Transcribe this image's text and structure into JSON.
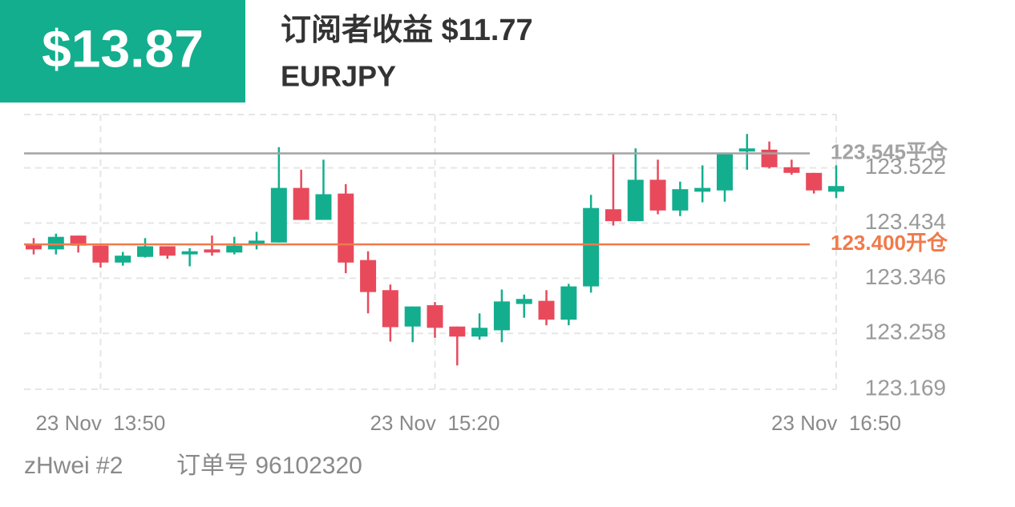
{
  "header": {
    "amount": "$13.87",
    "title": "订阅者收益 $11.77",
    "symbol": "EURJPY"
  },
  "footer": {
    "user": "zHwei #2",
    "order": "订单号 96102320"
  },
  "chart_data": {
    "type": "candlestick",
    "categories": [
      null,
      null,
      null,
      "23 Nov  13:50",
      null,
      null,
      null,
      null,
      null,
      null,
      null,
      null,
      null,
      null,
      null,
      null,
      null,
      null,
      "23 Nov  15:20",
      null,
      null,
      null,
      null,
      null,
      null,
      null,
      null,
      null,
      null,
      null,
      null,
      null,
      null,
      null,
      null,
      null,
      "23 Nov  16:50"
    ],
    "open": [
      123.401,
      123.392,
      123.414,
      123.398,
      123.371,
      123.38,
      123.397,
      123.384,
      123.392,
      123.387,
      123.401,
      123.403,
      123.49,
      123.439,
      123.481,
      123.375,
      123.327,
      123.269,
      123.303,
      123.269,
      123.253,
      123.263,
      123.305,
      123.31,
      123.28,
      123.333,
      123.456,
      123.437,
      123.503,
      123.454,
      123.484,
      123.486,
      123.548,
      123.551,
      123.523,
      123.514,
      123.484
    ],
    "high": [
      123.41,
      123.417,
      123.414,
      123.398,
      123.388,
      123.41,
      123.397,
      123.394,
      123.414,
      123.412,
      123.42,
      123.555,
      123.519,
      123.535,
      123.496,
      123.389,
      123.336,
      123.301,
      123.308,
      123.269,
      123.29,
      123.328,
      123.32,
      123.327,
      123.337,
      123.479,
      123.546,
      123.553,
      123.535,
      123.5,
      123.526,
      123.544,
      123.576,
      123.564,
      123.535,
      123.514,
      123.526
    ],
    "low": [
      123.384,
      123.384,
      123.387,
      123.363,
      123.366,
      123.379,
      123.377,
      123.365,
      123.382,
      123.384,
      123.392,
      123.403,
      123.439,
      123.439,
      123.354,
      123.29,
      123.245,
      123.244,
      123.251,
      123.207,
      123.248,
      123.244,
      123.283,
      123.271,
      123.271,
      123.323,
      123.43,
      123.437,
      123.448,
      123.445,
      123.467,
      123.468,
      123.519,
      123.521,
      123.511,
      123.481,
      123.474
    ],
    "close": [
      123.392,
      123.412,
      123.398,
      123.371,
      123.382,
      123.397,
      123.382,
      123.389,
      123.387,
      123.398,
      123.406,
      123.49,
      123.439,
      123.48,
      123.371,
      123.324,
      123.268,
      123.301,
      123.267,
      123.253,
      123.267,
      123.309,
      123.313,
      123.28,
      123.333,
      123.458,
      123.437,
      123.503,
      123.454,
      123.488,
      123.49,
      123.544,
      123.553,
      123.523,
      123.514,
      123.486,
      123.493
    ],
    "up_color": "#13ae8e",
    "down_color": "#e84a5c",
    "ylim": [
      123.169,
      123.607
    ],
    "yticks": [
      123.169,
      123.258,
      123.346,
      123.434,
      123.522
    ],
    "grid": true,
    "lines": [
      {
        "value": 123.545,
        "label": "123.545平仓",
        "color": "#a3a3a3"
      },
      {
        "value": 123.4,
        "label": "123.400开仓",
        "color": "#f07a4a"
      }
    ]
  }
}
